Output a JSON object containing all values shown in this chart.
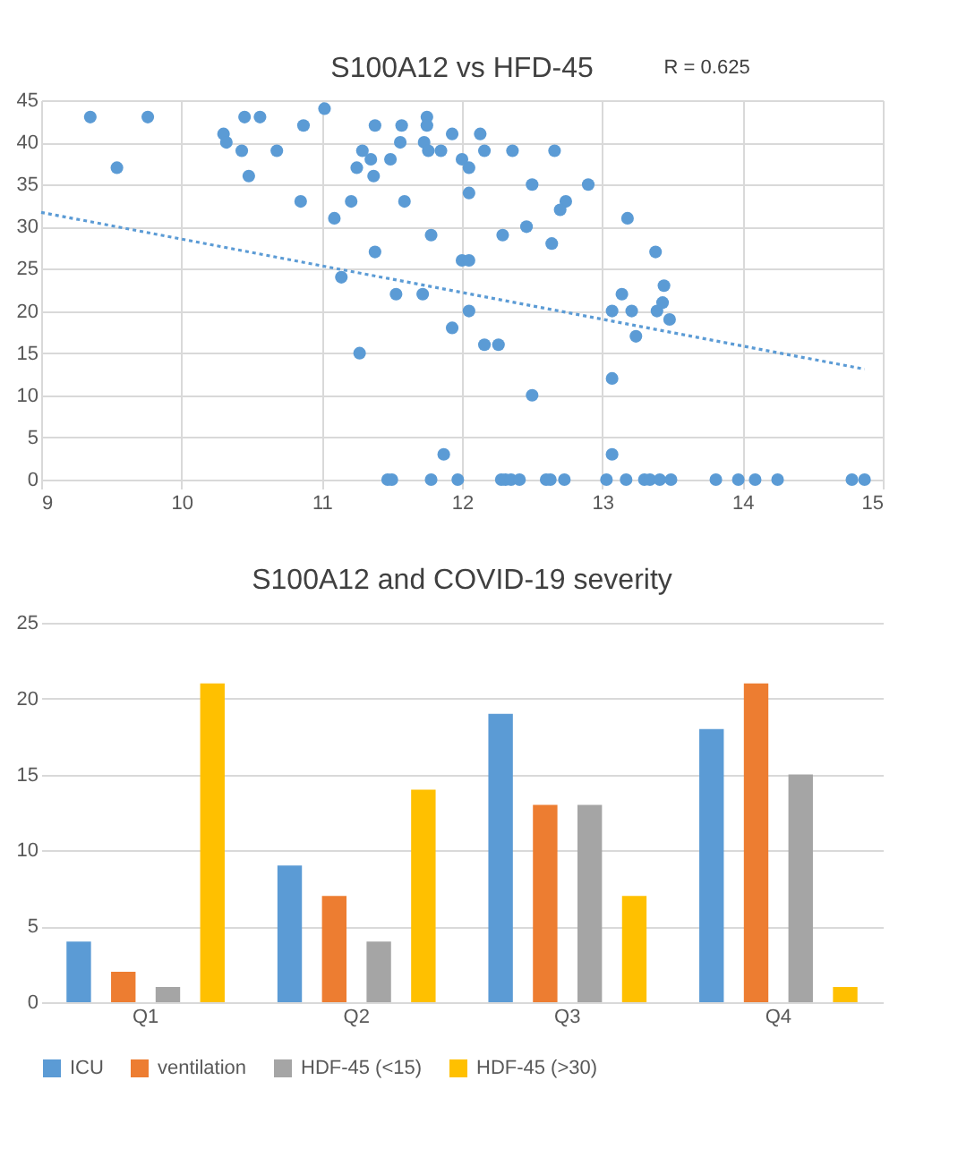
{
  "chart_data": [
    {
      "type": "scatter",
      "title": "S100A12 vs HFD-45",
      "annotations": [
        "R = 0.625"
      ],
      "xlim": [
        9,
        15
      ],
      "xticks": [
        9,
        10,
        11,
        12,
        13,
        14,
        15
      ],
      "ylim": [
        0,
        45
      ],
      "yticks": [
        0,
        5,
        10,
        15,
        20,
        25,
        30,
        35,
        40,
        45
      ],
      "grid": true,
      "marker": "circle",
      "series": [
        {
          "type": "scatter",
          "color": "#5b9bd5",
          "x": [
            9.35,
            9.54,
            9.76,
            10.3,
            10.32,
            10.43,
            10.45,
            10.56,
            10.48,
            10.68,
            10.87,
            10.85,
            11.02,
            11.09,
            11.14,
            11.21,
            11.25,
            11.29,
            11.27,
            11.35,
            11.38,
            11.37,
            11.38,
            11.49,
            11.53,
            11.57,
            11.56,
            11.59,
            11.47,
            11.5,
            11.73,
            11.72,
            11.75,
            11.75,
            11.76,
            11.78,
            11.78,
            11.85,
            11.93,
            12.0,
            12.05,
            12.05,
            12.13,
            12.16,
            12.36,
            12.66,
            12.5,
            12.9,
            12.74,
            12.7,
            12.46,
            12.29,
            12.64,
            13.18,
            13.38,
            12.0,
            12.05,
            13.44,
            13.14,
            13.07,
            13.21,
            13.39,
            13.43,
            13.48,
            13.24,
            12.05,
            11.93,
            12.16,
            12.26,
            12.5,
            13.07,
            11.87,
            13.07,
            11.97,
            12.28,
            12.31,
            12.35,
            12.41,
            12.6,
            12.63,
            12.73,
            13.03,
            13.17,
            13.3,
            13.34,
            13.41,
            13.49,
            13.81,
            13.97,
            14.09,
            14.25,
            14.78,
            14.87
          ],
          "values": [
            43,
            37,
            43,
            41,
            40,
            39,
            43,
            43,
            36,
            39,
            42,
            33,
            44,
            31,
            24,
            33,
            37,
            39,
            15,
            38,
            42,
            36,
            27,
            38,
            22,
            42,
            40,
            33,
            0,
            0,
            40,
            22,
            43,
            42,
            39,
            29,
            0,
            39,
            41,
            38,
            37,
            34,
            41,
            39,
            39,
            39,
            35,
            35,
            33,
            32,
            30,
            29,
            28,
            31,
            27,
            26,
            26,
            23,
            22,
            20,
            20,
            20,
            21,
            19,
            17,
            20,
            18,
            16,
            16,
            10,
            12,
            3,
            3,
            0,
            0,
            0,
            0,
            0,
            0,
            0,
            0,
            0,
            0,
            0,
            0,
            0,
            0,
            0,
            0,
            0,
            0,
            0,
            0
          ]
        },
        {
          "type": "line",
          "color": "#5b9bd5",
          "line_style": "dotted",
          "marker": "none",
          "x": [
            9,
            14.87
          ],
          "values": [
            31.7,
            13.1
          ]
        }
      ]
    },
    {
      "type": "bar",
      "title": "S100A12 and COVID-19 severity",
      "categories": [
        "Q1",
        "Q2",
        "Q3",
        "Q4"
      ],
      "ylim": [
        0,
        25
      ],
      "yticks": [
        0,
        5,
        10,
        15,
        20,
        25
      ],
      "grid": "y",
      "legend": "bottom",
      "series": [
        {
          "name": "ICU",
          "color": "#5b9bd5",
          "values": [
            4,
            9,
            19,
            18
          ]
        },
        {
          "name": "ventilation",
          "color": "#ed7d31",
          "values": [
            2,
            7,
            13,
            21
          ]
        },
        {
          "name": "HDF-45 (<15)",
          "color": "#a5a5a5",
          "values": [
            1,
            4,
            13,
            15
          ]
        },
        {
          "name": "HDF-45 (>30)",
          "color": "#ffc000",
          "values": [
            21,
            14,
            7,
            1
          ]
        }
      ]
    }
  ]
}
